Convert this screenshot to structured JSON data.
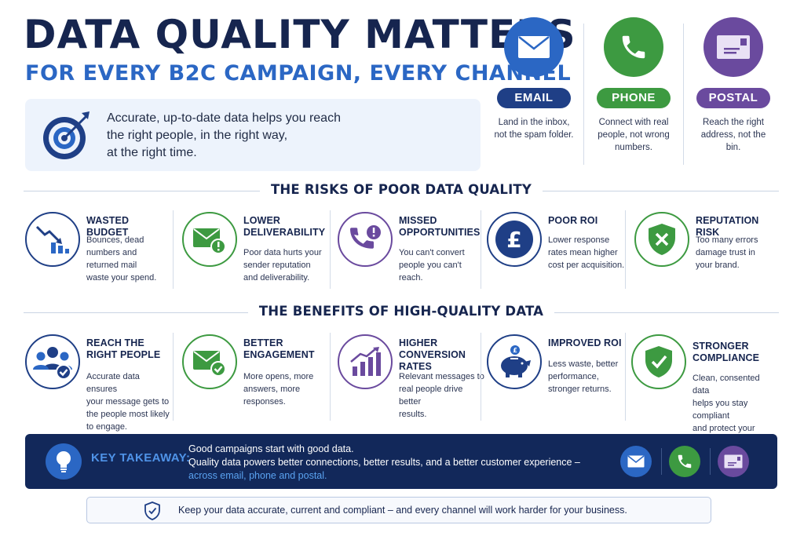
{
  "header": {
    "title": "DATA QUALITY MATTERS",
    "subtitle": "FOR EVERY B2C CAMPAIGN, EVERY CHANNEL"
  },
  "intro": {
    "lines": [
      "Accurate, up-to-date data helps you reach",
      "the right people, in the right way,",
      "at the right time."
    ],
    "icon": "target-icon"
  },
  "channels": [
    {
      "label": "EMAIL",
      "desc": [
        "Land in the inbox,",
        "not the spam folder."
      ],
      "color": "#2b67c4",
      "icon": "envelope-icon"
    },
    {
      "label": "PHONE",
      "desc": [
        "Connect with real",
        "people, not wrong",
        "numbers."
      ],
      "color": "#3d9a41",
      "icon": "phone-icon"
    },
    {
      "label": "POSTAL",
      "desc": [
        "Reach the right",
        "address, not the",
        "bin."
      ],
      "color": "#6a4a9e",
      "icon": "postcard-icon"
    }
  ],
  "risks": {
    "title": "THE RISKS OF POOR DATA QUALITY",
    "items": [
      {
        "head": [
          "WASTED BUDGET"
        ],
        "body": [
          "Bounces, dead",
          "numbers and",
          "returned mail",
          "waste your spend."
        ],
        "color": "#1f3f86",
        "icon": "declining-chart-icon"
      },
      {
        "head": [
          "LOWER",
          "DELIVERABILITY"
        ],
        "body": [
          "Poor data hurts your",
          "sender reputation",
          "and deliverability."
        ],
        "color": "#3d9a41",
        "icon": "email-warning-icon"
      },
      {
        "head": [
          "MISSED",
          "OPPORTUNITIES"
        ],
        "body": [
          "You can't convert",
          "people you can't",
          "reach."
        ],
        "color": "#6a4a9e",
        "icon": "phone-warning-icon"
      },
      {
        "head": [
          "POOR ROI"
        ],
        "body": [
          "Lower response",
          "rates mean higher",
          "cost per acquisition."
        ],
        "color": "#1f3f86",
        "icon": "pound-icon"
      },
      {
        "head": [
          "REPUTATION RISK"
        ],
        "body": [
          "Too many errors",
          "damage trust in",
          "your brand."
        ],
        "color": "#3d9a41",
        "icon": "shield-x-icon"
      }
    ]
  },
  "benefits": {
    "title": "THE BENEFITS OF HIGH-QUALITY DATA",
    "items": [
      {
        "head": [
          "REACH THE",
          "RIGHT PEOPLE"
        ],
        "body": [
          "Accurate data ensures",
          "your message gets to",
          "the people most likely",
          "to engage."
        ],
        "color": "#1f3f86",
        "icon": "people-check-icon"
      },
      {
        "head": [
          "BETTER",
          "ENGAGEMENT"
        ],
        "body": [
          "More opens, more",
          "answers, more",
          "responses."
        ],
        "color": "#3d9a41",
        "icon": "email-check-icon"
      },
      {
        "head": [
          "HIGHER",
          "CONVERSION RATES"
        ],
        "body": [
          "Relevant messages to",
          "real people drive better",
          "results."
        ],
        "color": "#6a4a9e",
        "icon": "rising-chart-icon"
      },
      {
        "head": [
          "IMPROVED ROI"
        ],
        "body": [
          "Less waste, better",
          "performance,",
          "stronger returns."
        ],
        "color": "#1f3f86",
        "icon": "piggy-bank-icon"
      },
      {
        "head": [
          "STRONGER",
          "COMPLIANCE"
        ],
        "body": [
          "Clean, consented data",
          "helps you stay compliant",
          "and protect your brand."
        ],
        "color": "#3d9a41",
        "icon": "shield-check-icon"
      }
    ]
  },
  "takeaway": {
    "label": "KEY TAKEAWAY:",
    "line1": "Good campaigns start with good data.",
    "line2": "Quality data powers better connections, better results, and a better customer experience –",
    "line3": "across email, phone and postal.",
    "icons": [
      "envelope-icon",
      "phone-icon",
      "postcard-icon"
    ]
  },
  "footer": {
    "text": "Keep your data accurate, current and compliant – and every channel will work harder for your business."
  }
}
